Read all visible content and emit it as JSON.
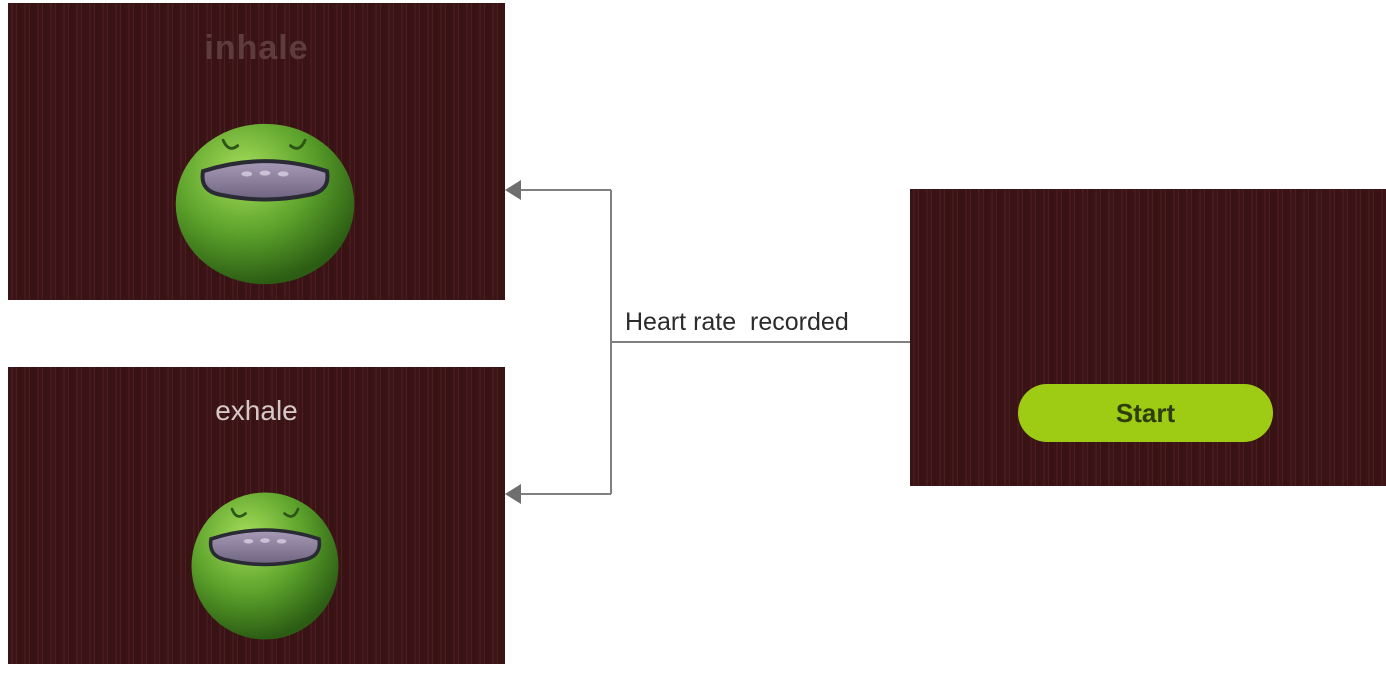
{
  "screens": {
    "inhale": {
      "label": "inhale"
    },
    "exhale": {
      "label": "exhale"
    },
    "start": {
      "button_label": "Start"
    }
  },
  "edge": {
    "label": "Heart rate  recorded"
  },
  "colors": {
    "screen_background": "#3e1518",
    "face_green": "#5ca22b",
    "mouth_purple": "#8a7d9a",
    "button_green": "#9ecb14",
    "connector_gray": "#808080"
  },
  "icons": {
    "face": "smiling-green-face-icon",
    "arrowhead": "arrow-left-icon"
  }
}
